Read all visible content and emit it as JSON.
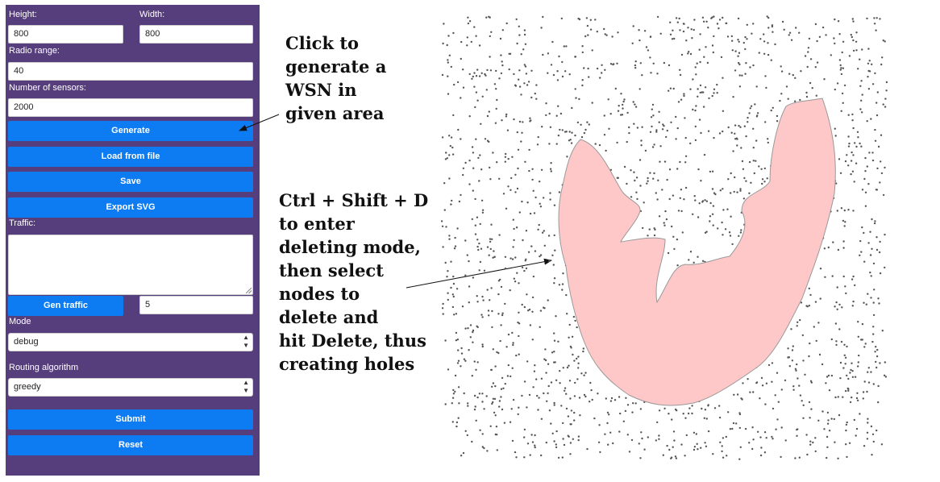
{
  "sidebar": {
    "height_label": "Height:",
    "height_value": "800",
    "width_label": "Width:",
    "width_value": "800",
    "radio_label": "Radio range:",
    "radio_value": "40",
    "sensors_label": "Number of sensors:",
    "sensors_value": "2000",
    "generate_label": "Generate",
    "load_label": "Load from file",
    "save_label": "Save",
    "export_label": "Export SVG",
    "traffic_label": "Traffic:",
    "traffic_value": "",
    "gen_traffic_label": "Gen traffic",
    "gen_traffic_count": "5",
    "mode_label": "Mode",
    "mode_value": "debug",
    "routing_label": "Routing algorithm",
    "routing_value": "greedy",
    "submit_label": "Submit",
    "reset_label": "Reset"
  },
  "annotations": {
    "generate_note": [
      "Click to",
      "generate a",
      "WSN in",
      "given area"
    ],
    "delete_note": [
      "Ctrl + Shift + D",
      "to enter",
      "deleting mode,",
      "then select",
      "nodes to",
      "delete and",
      "hit Delete, thus",
      "creating holes"
    ]
  },
  "colors": {
    "sidebar": "#563d7c",
    "button": "#0d7cf2",
    "node": "#555555",
    "selected_node": "#c0393b",
    "selection_fill": "#ffc8c8",
    "selection_stroke": "#999999"
  }
}
